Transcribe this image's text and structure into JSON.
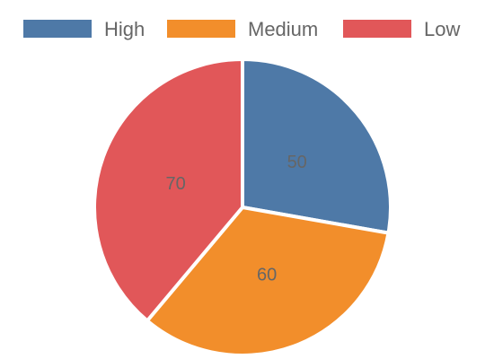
{
  "chart_data": {
    "type": "pie",
    "categories": [
      "High",
      "Medium",
      "Low"
    ],
    "values": [
      50,
      60,
      70
    ],
    "colors": [
      "#4e79a7",
      "#f28e2b",
      "#e15759"
    ],
    "legend_position": "top",
    "title": "",
    "slice_labels_shown": true
  }
}
